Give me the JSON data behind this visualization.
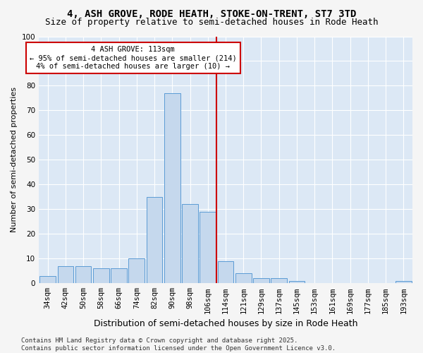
{
  "title": "4, ASH GROVE, RODE HEATH, STOKE-ON-TRENT, ST7 3TD",
  "subtitle": "Size of property relative to semi-detached houses in Rode Heath",
  "xlabel": "Distribution of semi-detached houses by size in Rode Heath",
  "ylabel": "Number of semi-detached properties",
  "categories": [
    "34sqm",
    "42sqm",
    "50sqm",
    "58sqm",
    "66sqm",
    "74sqm",
    "82sqm",
    "90sqm",
    "98sqm",
    "106sqm",
    "114sqm",
    "121sqm",
    "129sqm",
    "137sqm",
    "145sqm",
    "153sqm",
    "161sqm",
    "169sqm",
    "177sqm",
    "185sqm",
    "193sqm"
  ],
  "values": [
    3,
    7,
    7,
    6,
    6,
    10,
    35,
    77,
    32,
    29,
    9,
    4,
    2,
    2,
    1,
    0,
    0,
    0,
    0,
    0,
    1
  ],
  "bar_color": "#c5d8ed",
  "bar_edge_color": "#5b9bd5",
  "bg_color": "#dce8f5",
  "grid_color": "#ffffff",
  "vline_color": "#cc0000",
  "vline_pos": 10.5,
  "annotation_title": "4 ASH GROVE: 113sqm",
  "annotation_line1": "← 95% of semi-detached houses are smaller (214)",
  "annotation_line2": "4% of semi-detached houses are larger (10) →",
  "annotation_box_edgecolor": "#cc0000",
  "ylim": [
    0,
    100
  ],
  "yticks": [
    0,
    10,
    20,
    30,
    40,
    50,
    60,
    70,
    80,
    90,
    100
  ],
  "footnote1": "Contains HM Land Registry data © Crown copyright and database right 2025.",
  "footnote2": "Contains public sector information licensed under the Open Government Licence v3.0.",
  "title_fontsize": 10,
  "subtitle_fontsize": 9,
  "xlabel_fontsize": 9,
  "ylabel_fontsize": 8,
  "tick_fontsize": 7.5,
  "annot_fontsize": 7.5,
  "footnote_fontsize": 6.5,
  "fig_facecolor": "#f5f5f5"
}
